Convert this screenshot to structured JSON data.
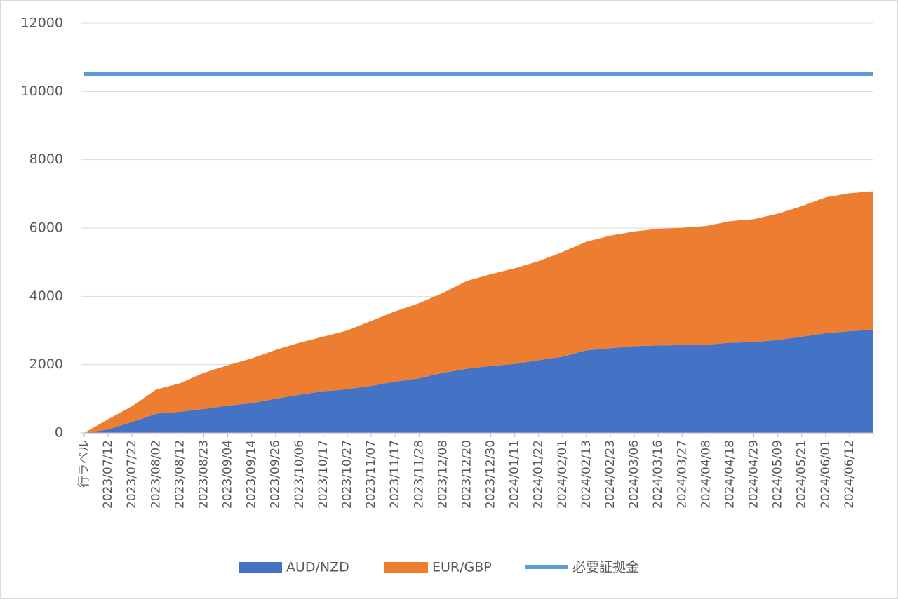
{
  "chart_data": {
    "type": "area",
    "stacked": true,
    "categories": [
      "行ラベル",
      "2023/07/12",
      "2023/07/22",
      "2023/08/02",
      "2023/08/12",
      "2023/08/23",
      "2023/09/04",
      "2023/09/14",
      "2023/09/26",
      "2023/10/06",
      "2023/10/17",
      "2023/10/27",
      "2023/11/07",
      "2023/11/17",
      "2023/11/28",
      "2023/12/08",
      "2023/12/20",
      "2023/12/30",
      "2024/01/11",
      "2024/01/22",
      "2024/02/01",
      "2024/02/13",
      "2024/02/23",
      "2024/03/06",
      "2024/03/16",
      "2024/03/27",
      "2024/04/08",
      "2024/04/18",
      "2024/04/29",
      "2024/05/09",
      "2024/05/21",
      "2024/06/01",
      "2024/06/12",
      null
    ],
    "series": [
      {
        "name": "AUD/NZD",
        "type": "area",
        "color": "#4472c4",
        "values": [
          0,
          100,
          320,
          560,
          620,
          700,
          800,
          870,
          1000,
          1120,
          1220,
          1280,
          1380,
          1500,
          1600,
          1760,
          1880,
          1960,
          2020,
          2130,
          2230,
          2420,
          2480,
          2540,
          2560,
          2570,
          2580,
          2640,
          2660,
          2720,
          2820,
          2920,
          2980,
          3020
        ]
      },
      {
        "name": "EUR/GBP",
        "type": "area",
        "color": "#ed7d31",
        "values": [
          0,
          300,
          460,
          710,
          830,
          1060,
          1180,
          1310,
          1430,
          1520,
          1600,
          1720,
          1900,
          2060,
          2200,
          2340,
          2570,
          2690,
          2800,
          2900,
          3070,
          3180,
          3300,
          3360,
          3420,
          3440,
          3480,
          3560,
          3600,
          3700,
          3820,
          3980,
          4040,
          4060
        ]
      },
      {
        "name": "必要証拠金",
        "type": "line",
        "color": "#5b9bd5",
        "values": [
          10520,
          10520,
          10520,
          10520,
          10520,
          10520,
          10520,
          10520,
          10520,
          10520,
          10520,
          10520,
          10520,
          10520,
          10520,
          10520,
          10520,
          10520,
          10520,
          10520,
          10520,
          10520,
          10520,
          10520,
          10520,
          10520,
          10520,
          10520,
          10520,
          10520,
          10520,
          10520,
          10520,
          10520
        ]
      }
    ],
    "ylim": [
      0,
      12000
    ],
    "yticks": [
      0,
      2000,
      4000,
      6000,
      8000,
      10000,
      12000
    ],
    "grid": true,
    "legend": "bottom"
  }
}
